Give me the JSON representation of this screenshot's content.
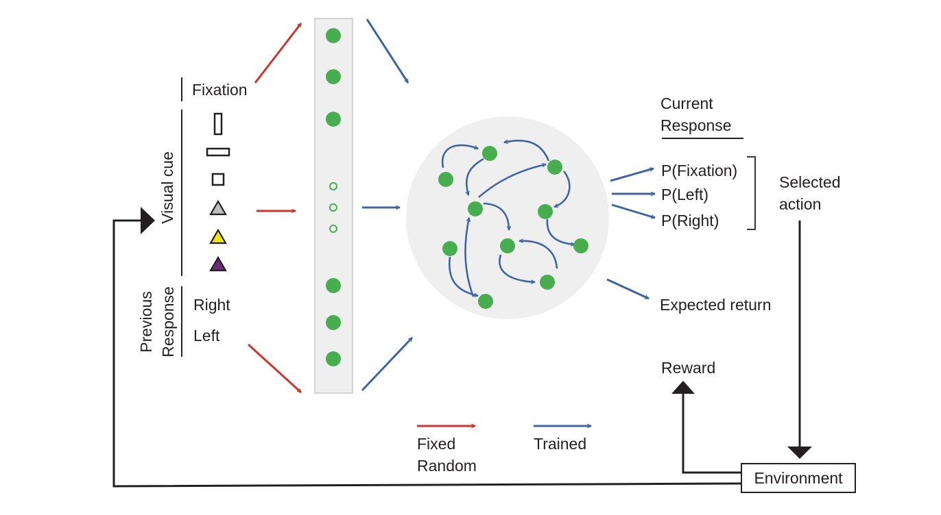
{
  "inputs": {
    "fixation": "Fixation",
    "visual_cue": "Visual cue",
    "previous_response_line1": "Previous",
    "previous_response_line2": "Response",
    "right": "Right",
    "left": "Left",
    "cue_shapes": [
      "vertical-bar",
      "horizontal-bar",
      "square",
      "triangle-gray",
      "triangle-yellow",
      "triangle-purple"
    ]
  },
  "outputs": {
    "current_response_line1": "Current",
    "current_response_line2": "Response",
    "p_fixation": "P(Fixation)",
    "p_left": "P(Left)",
    "p_right": "P(Right)",
    "selected_action_line1": "Selected",
    "selected_action_line2": "action",
    "expected_return": "Expected return",
    "reward": "Reward",
    "environment": "Environment"
  },
  "legend": {
    "fixed_random_line1": "Fixed",
    "fixed_random_line2": "Random",
    "trained": "Trained"
  },
  "colors": {
    "fixed_arrow": "#c8352e",
    "trained_arrow": "#3d64a4",
    "unit_fill": "#48ad4f",
    "panel_fill": "#efefef",
    "triangle_gray": "#bfbfbf",
    "triangle_yellow": "#f2e41b",
    "triangle_purple": "#6b2c7a"
  }
}
